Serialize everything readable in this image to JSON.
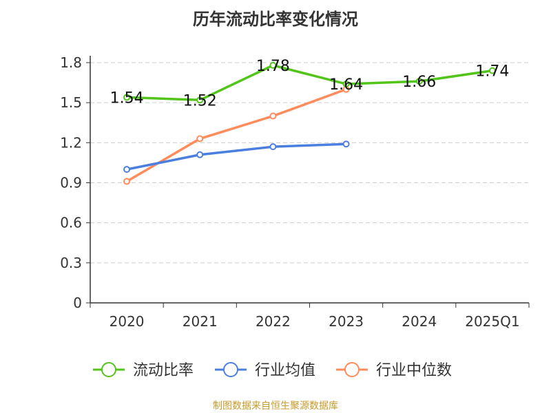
{
  "chart_data": {
    "type": "line",
    "title": "历年流动比率变化情况",
    "categories": [
      "2020",
      "2021",
      "2022",
      "2023",
      "2024",
      "2025Q1"
    ],
    "ylim": [
      0,
      1.8
    ],
    "yticks": [
      "0",
      "0.3",
      "0.6",
      "0.9",
      "1.2",
      "1.5",
      "1.8"
    ],
    "grid": true,
    "legend_position": "bottom",
    "series": [
      {
        "name": "流动比率",
        "color": "#52c41a",
        "values": [
          1.54,
          1.52,
          1.78,
          1.64,
          1.66,
          1.74
        ],
        "labels": [
          "1.54",
          "1.52",
          "1.78",
          "1.64",
          "1.66",
          "1.74"
        ]
      },
      {
        "name": "行业均值",
        "color": "#4a7fe0",
        "values": [
          1.0,
          1.11,
          1.17,
          1.19,
          null,
          null
        ]
      },
      {
        "name": "行业中位数",
        "color": "#ff8c5a",
        "values": [
          0.91,
          1.23,
          1.4,
          1.6,
          null,
          null
        ]
      }
    ]
  },
  "source": "制图数据来自恒生聚源数据库"
}
